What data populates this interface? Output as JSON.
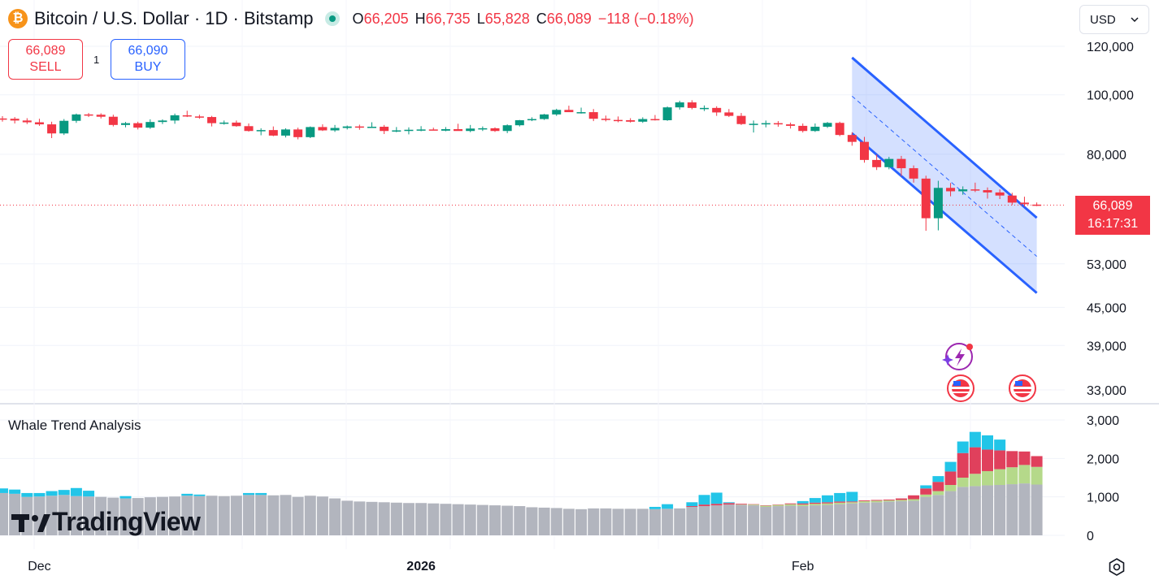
{
  "header": {
    "symbol_icon": "bitcoin-icon",
    "title": "Bitcoin / U.S. Dollar · 1D · Bitstamp",
    "open_label": "O",
    "open": "66,205",
    "high_label": "H",
    "high": "66,735",
    "low_label": "L",
    "low": "65,828",
    "close_label": "C",
    "close": "66,089",
    "change": "−118 (−0.18%)"
  },
  "trade": {
    "sell_price": "66,089",
    "sell_label": "SELL",
    "spread": "1",
    "buy_price": "66,090",
    "buy_label": "BUY"
  },
  "currency": {
    "value": "USD"
  },
  "last_price": {
    "value": "66,089",
    "countdown": "16:17:31"
  },
  "indicator": {
    "name": "Whale Trend Analysis"
  },
  "brand": {
    "name": "TradingView"
  },
  "colors": {
    "up": "#089981",
    "down": "#f23645",
    "channel": "#2962ff",
    "whale_cyan": "#22c5e8",
    "whale_red": "#e0405c",
    "whale_green": "#b5d98a",
    "whale_gray": "#b2b5be"
  },
  "chart_data": [
    {
      "type": "candlestick",
      "title": "Bitcoin / U.S. Dollar · 1D · Bitstamp",
      "y_scale": "log",
      "ylim": [
        31000,
        125000
      ],
      "y_ticks": [
        "120,000",
        "100,000",
        "80,000",
        "53,000",
        "45,000",
        "39,000",
        "33,000"
      ],
      "x_ticks": [
        "Dec",
        "2026",
        "Feb"
      ],
      "candles_ohlc": [
        [
          91500,
          92300,
          90400,
          91400
        ],
        [
          91400,
          92000,
          89800,
          90800
        ],
        [
          90800,
          91600,
          89600,
          90200
        ],
        [
          90200,
          91400,
          89000,
          89500
        ],
        [
          89500,
          90400,
          85000,
          86500
        ],
        [
          86500,
          91300,
          86000,
          90700
        ],
        [
          90700,
          93200,
          90000,
          92900
        ],
        [
          92900,
          93400,
          92000,
          92800
        ],
        [
          92800,
          93300,
          91500,
          92100
        ],
        [
          92100,
          92800,
          88800,
          89300
        ],
        [
          89300,
          90300,
          88500,
          89900
        ],
        [
          89900,
          90400,
          87800,
          88400
        ],
        [
          88400,
          91200,
          88000,
          90300
        ],
        [
          90300,
          91200,
          89600,
          90800
        ],
        [
          90800,
          93200,
          89700,
          92600
        ],
        [
          92600,
          94200,
          92000,
          92200
        ],
        [
          92200,
          92800,
          91400,
          92000
        ],
        [
          92000,
          92400,
          88800,
          89900
        ],
        [
          89900,
          90800,
          89400,
          90100
        ],
        [
          90100,
          90800,
          88700,
          88900
        ],
        [
          88900,
          89800,
          87100,
          87300
        ],
        [
          87300,
          88200,
          85900,
          87600
        ],
        [
          87600,
          88800,
          85600,
          85800
        ],
        [
          85800,
          88200,
          85200,
          87800
        ],
        [
          87800,
          88400,
          84600,
          85300
        ],
        [
          85300,
          88800,
          85000,
          88600
        ],
        [
          88600,
          89500,
          87300,
          87500
        ],
        [
          87500,
          89300,
          87000,
          88300
        ],
        [
          88300,
          89100,
          87800,
          88800
        ],
        [
          88800,
          89400,
          87700,
          88500
        ],
        [
          88500,
          90200,
          88300,
          88700
        ],
        [
          88700,
          89300,
          86300,
          87300
        ],
        [
          87300,
          88600,
          86900,
          87500
        ],
        [
          87500,
          88500,
          86200,
          87700
        ],
        [
          87700,
          88900,
          87200,
          87800
        ],
        [
          87800,
          88400,
          87500,
          87400
        ],
        [
          87400,
          88600,
          87200,
          87900
        ],
        [
          87900,
          89700,
          87500,
          87300
        ],
        [
          87300,
          89300,
          86900,
          88100
        ],
        [
          88100,
          88800,
          87300,
          88200
        ],
        [
          88200,
          88500,
          87000,
          87300
        ],
        [
          87300,
          89500,
          86600,
          89200
        ],
        [
          89200,
          91000,
          88800,
          90900
        ],
        [
          90900,
          91900,
          90600,
          91300
        ],
        [
          91300,
          93100,
          91000,
          92900
        ],
        [
          92900,
          94900,
          92400,
          94500
        ],
        [
          94500,
          96000,
          93800,
          93700
        ],
        [
          93700,
          95300,
          93200,
          93700
        ],
        [
          93700,
          94800,
          90600,
          91400
        ],
        [
          91400,
          92500,
          90500,
          91000
        ],
        [
          91000,
          92200,
          90200,
          90900
        ],
        [
          90900,
          91600,
          90100,
          90400
        ],
        [
          90400,
          91900,
          90000,
          91300
        ],
        [
          91300,
          92700,
          90800,
          90900
        ],
        [
          90900,
          95700,
          90700,
          95400
        ],
        [
          95400,
          97800,
          94600,
          97200
        ],
        [
          97200,
          98000,
          94700,
          95200
        ],
        [
          95200,
          96100,
          94100,
          95200
        ],
        [
          95200,
          95800,
          92400,
          93600
        ],
        [
          93600,
          94800,
          92000,
          92400
        ],
        [
          92400,
          93400,
          89300,
          89600
        ],
        [
          89600,
          90800,
          86800,
          89700
        ],
        [
          89700,
          90800,
          88500,
          89900
        ],
        [
          89900,
          90600,
          88700,
          89500
        ],
        [
          89500,
          90100,
          88100,
          89000
        ],
        [
          89000,
          89800,
          86800,
          87300
        ],
        [
          87300,
          89800,
          87000,
          88700
        ],
        [
          88700,
          90300,
          88300,
          90000
        ],
        [
          90000,
          90400,
          85600,
          86000
        ],
        [
          86000,
          86900,
          82600,
          83800
        ],
        [
          83800,
          85400,
          77500,
          78300
        ],
        [
          78300,
          79900,
          75400,
          76200
        ],
        [
          76200,
          79200,
          75600,
          78600
        ],
        [
          78600,
          79500,
          73700,
          75900
        ],
        [
          75900,
          76700,
          71900,
          73000
        ],
        [
          73000,
          73800,
          60000,
          62900
        ],
        [
          62900,
          72400,
          60100,
          70500
        ],
        [
          70500,
          71800,
          68300,
          69600
        ],
        [
          69600,
          70900,
          68700,
          70100
        ],
        [
          70100,
          71900,
          69400,
          69900
        ],
        [
          69900,
          70600,
          67700,
          69300
        ],
        [
          69300,
          70100,
          67600,
          68500
        ],
        [
          68500,
          69200,
          66100,
          66700
        ],
        [
          66700,
          68200,
          65700,
          66300
        ],
        [
          66205,
          66735,
          65828,
          66089
        ]
      ],
      "channel": {
        "upper": [
          [
            69,
            115000
          ],
          [
            84,
            63000
          ]
        ],
        "lower": [
          [
            69,
            86500
          ],
          [
            84,
            47500
          ]
        ],
        "mid": [
          [
            69,
            99500
          ],
          [
            84,
            54500
          ]
        ]
      },
      "last_price": 66089
    },
    {
      "type": "bar",
      "title": "Whale Trend Analysis",
      "stacked": true,
      "ylim": [
        0,
        3200
      ],
      "y_ticks": [
        "3,000",
        "2,000",
        "1,000",
        "0"
      ],
      "series": [
        {
          "color": "gray",
          "values": [
            1100,
            1080,
            1000,
            1010,
            1030,
            1050,
            1020,
            1010,
            1000,
            980,
            960,
            970,
            990,
            1000,
            1010,
            1030,
            1020,
            1030,
            1020,
            1030,
            1050,
            1050,
            1040,
            1050,
            1000,
            1030,
            1010,
            960,
            900,
            880,
            870,
            860,
            850,
            840,
            840,
            830,
            820,
            810,
            800,
            790,
            780,
            770,
            760,
            730,
            720,
            710,
            690,
            680,
            700,
            700,
            690,
            690,
            690,
            680,
            690,
            700,
            740,
            760,
            780,
            800,
            790,
            780,
            740,
            760,
            770,
            760,
            780,
            790,
            810,
            830,
            850,
            860,
            880,
            890,
            900,
            1000,
            1050,
            1150,
            1260,
            1280,
            1300,
            1310,
            1330,
            1350,
            1320
          ]
        },
        {
          "color": "green",
          "values": [
            0,
            0,
            0,
            0,
            0,
            0,
            0,
            0,
            0,
            0,
            0,
            0,
            0,
            0,
            0,
            0,
            0,
            0,
            0,
            0,
            0,
            0,
            0,
            0,
            0,
            0,
            0,
            0,
            0,
            0,
            0,
            0,
            0,
            0,
            0,
            0,
            0,
            0,
            0,
            0,
            0,
            0,
            0,
            0,
            0,
            0,
            0,
            0,
            0,
            0,
            0,
            0,
            0,
            0,
            0,
            0,
            0,
            0,
            0,
            0,
            10,
            20,
            30,
            30,
            40,
            40,
            40,
            40,
            40,
            30,
            40,
            40,
            30,
            30,
            40,
            60,
            100,
            160,
            240,
            320,
            370,
            410,
            440,
            480,
            460
          ]
        },
        {
          "color": "red",
          "values": [
            0,
            0,
            0,
            0,
            0,
            0,
            0,
            0,
            0,
            0,
            0,
            0,
            0,
            0,
            0,
            0,
            0,
            0,
            0,
            0,
            0,
            0,
            0,
            0,
            0,
            0,
            0,
            0,
            0,
            0,
            0,
            0,
            0,
            0,
            0,
            0,
            0,
            0,
            0,
            0,
            0,
            0,
            0,
            0,
            0,
            0,
            0,
            0,
            0,
            0,
            0,
            0,
            0,
            0,
            0,
            0,
            20,
            40,
            40,
            40,
            20,
            10,
            10,
            10,
            20,
            30,
            30,
            30,
            30,
            20,
            20,
            20,
            20,
            40,
            100,
            160,
            240,
            350,
            640,
            690,
            560,
            490,
            420,
            350,
            280
          ]
        },
        {
          "color": "cyan",
          "values": [
            120,
            110,
            100,
            90,
            120,
            130,
            210,
            150,
            0,
            0,
            60,
            0,
            0,
            0,
            0,
            50,
            40,
            0,
            0,
            0,
            50,
            50,
            0,
            0,
            0,
            0,
            0,
            0,
            0,
            0,
            0,
            0,
            0,
            0,
            0,
            0,
            0,
            0,
            0,
            0,
            0,
            0,
            0,
            0,
            0,
            0,
            0,
            0,
            0,
            0,
            0,
            0,
            0,
            60,
            120,
            0,
            100,
            250,
            290,
            20,
            0,
            0,
            0,
            0,
            0,
            60,
            120,
            180,
            220,
            250,
            0,
            0,
            0,
            0,
            0,
            80,
            150,
            250,
            300,
            400,
            370,
            280,
            0,
            0,
            0
          ]
        }
      ],
      "x_ticks": [
        "Dec",
        "2026",
        "Feb"
      ]
    }
  ]
}
